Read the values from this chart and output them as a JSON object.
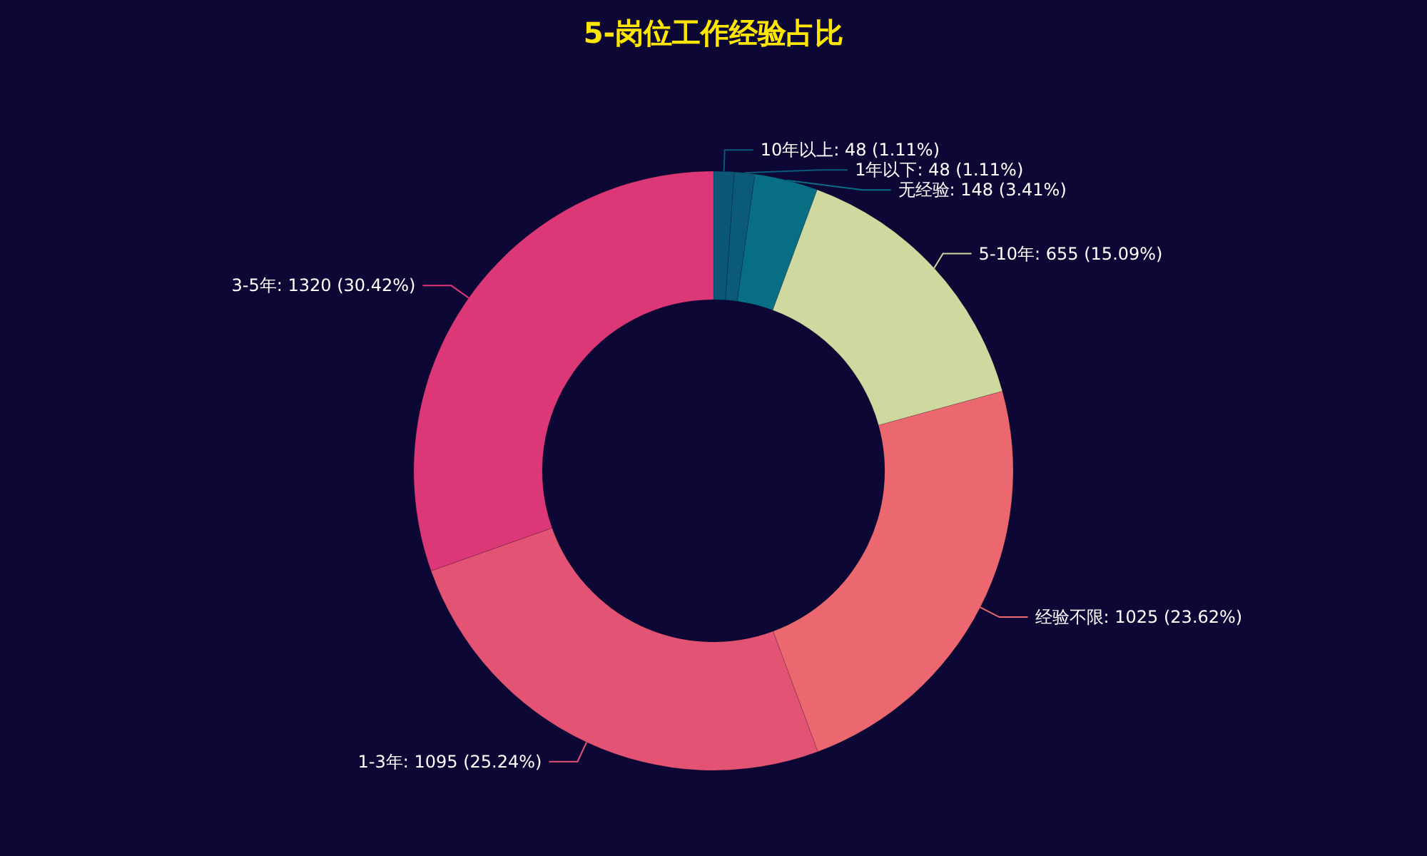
{
  "chart_data": {
    "type": "donut",
    "title": "5-岗位工作经验占比",
    "categories": [
      "10年以上",
      "1年以下",
      "无经验",
      "5-10年",
      "经验不限",
      "1-3年",
      "3-5年"
    ],
    "values": [
      48,
      48,
      148,
      655,
      1025,
      1095,
      1320
    ],
    "colors": [
      "#0a5777",
      "#0a5a78",
      "#086e83",
      "#cfd89e",
      "#eb6870",
      "#e35474",
      "#dc3877"
    ],
    "value_labels": [
      "48 (1.11%)",
      "48 (1.11%)",
      "148 (3.41%)",
      "655 (15.09%)",
      "1025 (23.62%)",
      "1095 (25.24%)",
      "1320 (30.42%)"
    ],
    "legend": false
  }
}
